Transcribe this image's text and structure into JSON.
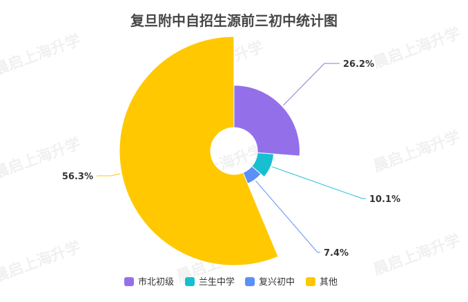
{
  "chart_data": {
    "type": "pie",
    "variant": "rose",
    "title": "复旦附中自招生源前三初中统计图",
    "series": [
      {
        "name": "市北初级",
        "value": 26.2,
        "label": "26.2%",
        "color": "#9370ea"
      },
      {
        "name": "兰生中学",
        "value": 10.1,
        "label": "10.1%",
        "color": "#17c0d0"
      },
      {
        "name": "复兴初中",
        "value": 7.4,
        "label": "7.4%",
        "color": "#5b8ff9"
      },
      {
        "name": "其他",
        "value": 56.3,
        "label": "56.3%",
        "color": "#ffc800"
      }
    ],
    "legend": "bottom"
  },
  "watermark": {
    "text": "晨启上海升学"
  }
}
